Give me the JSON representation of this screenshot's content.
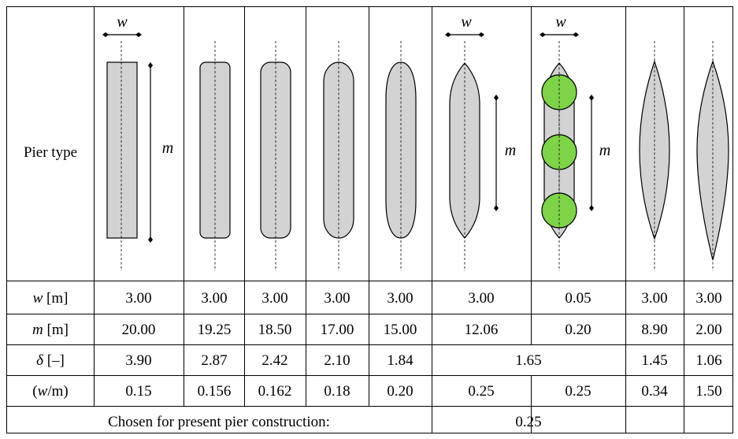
{
  "table": {
    "header_label": "Pier type",
    "shape_annotations": {
      "width_symbol": "w",
      "length_symbol": "m"
    },
    "rows": [
      {
        "label_symbol": "w",
        "label_unit": " [m]",
        "values": [
          "3.00",
          "3.00",
          "3.00",
          "3.00",
          "3.00",
          "3.00",
          "0.05",
          "3.00",
          "3.00"
        ]
      },
      {
        "label_symbol": "m",
        "label_unit": " [m]",
        "values": [
          "20.00",
          "19.25",
          "18.50",
          "17.00",
          "15.00",
          "12.06",
          "0.20",
          "8.90",
          "2.00"
        ]
      },
      {
        "label_symbol": "δ",
        "label_unit": " [–]",
        "values": [
          "3.90",
          "2.87",
          "2.42",
          "2.10",
          "1.84",
          "1.65",
          "1.45",
          "1.06"
        ]
      },
      {
        "label_prefix": "(",
        "label_symbol": "w",
        "label_unit": "/m)",
        "values": [
          "0.15",
          "0.156",
          "0.162",
          "0.18",
          "0.20",
          "0.25",
          "0.25",
          "0.34",
          "1.50"
        ]
      }
    ],
    "footer": {
      "label": "Chosen for present pier construction:",
      "value": "0.25"
    }
  }
}
